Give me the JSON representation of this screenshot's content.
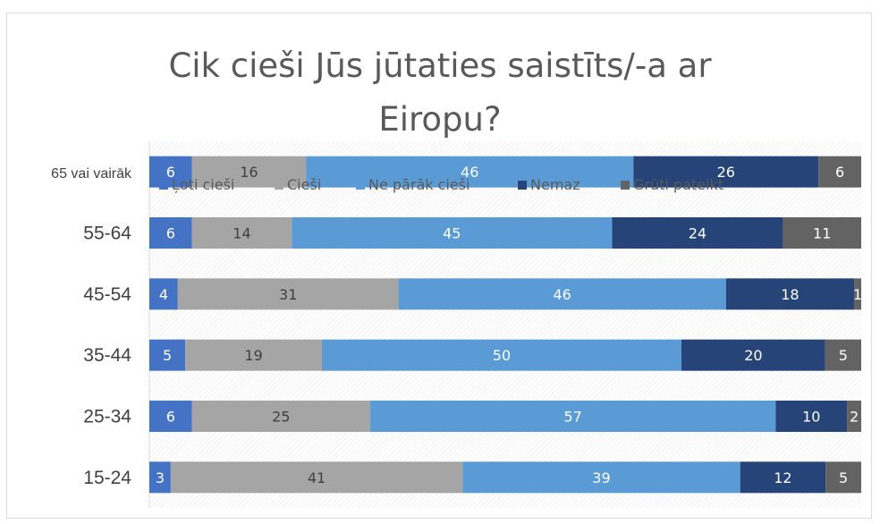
{
  "chart_data": {
    "type": "bar",
    "orientation": "horizontal",
    "stacked": "percent",
    "title_lines": [
      "Cik cieši Jūs jūtaties saistīts/-a ar",
      "Eiropu?"
    ],
    "categories": [
      "65 vai vairāk",
      "55-64",
      "45-54",
      "35-44",
      "25-34",
      "15-24"
    ],
    "series": [
      {
        "name": "Ļoti cieši",
        "color": "#4472c4",
        "values": [
          6,
          6,
          4,
          5,
          6,
          3
        ]
      },
      {
        "name": "Cieši",
        "color": "#a5a5a5",
        "values": [
          16,
          14,
          31,
          19,
          25,
          41
        ]
      },
      {
        "name": "Ne pārāk cieši",
        "color": "#5b9bd5",
        "values": [
          46,
          45,
          46,
          50,
          57,
          39
        ]
      },
      {
        "name": "Nemaz",
        "color": "#264478",
        "values": [
          26,
          24,
          18,
          20,
          10,
          12
        ]
      },
      {
        "name": "Grūti pateikt",
        "color": "#636363",
        "values": [
          6,
          11,
          1,
          5,
          2,
          5
        ]
      }
    ],
    "legend_position": "top",
    "grid": true,
    "label_color_dark": "#404040",
    "label_color_light": "#ffffff"
  }
}
